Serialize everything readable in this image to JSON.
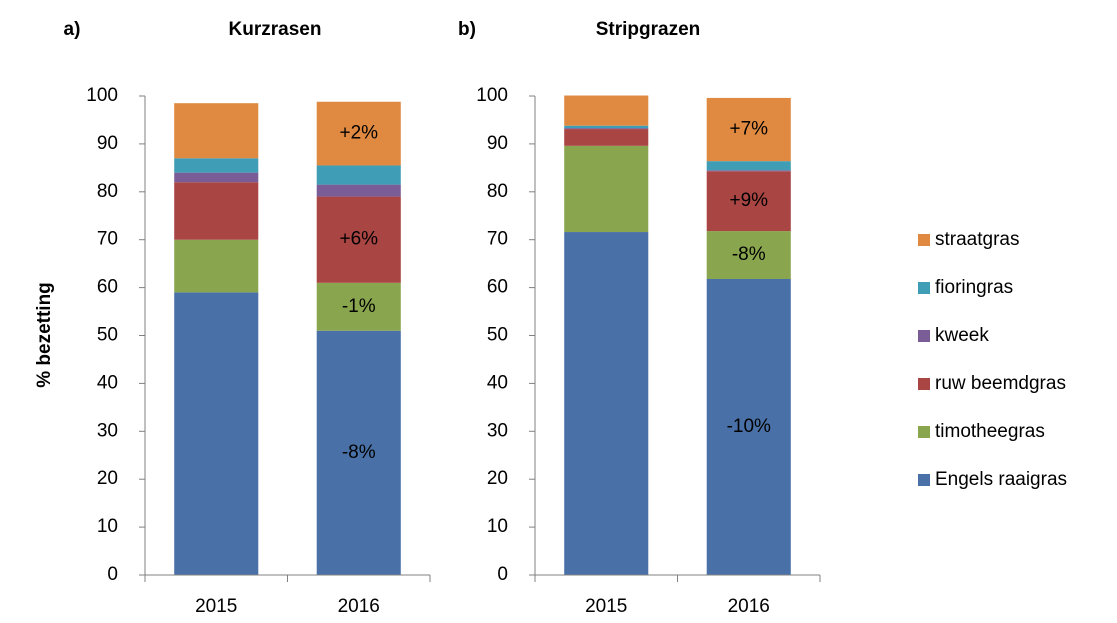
{
  "chart_data": [
    {
      "type": "stacked_bar",
      "panel_label": "a)",
      "title": "Kurzrasen",
      "ylabel": "% bezetting",
      "categories": [
        "2015",
        "2016"
      ],
      "ylim": [
        0,
        100
      ],
      "yticks": [
        0,
        10,
        20,
        30,
        40,
        50,
        60,
        70,
        80,
        90,
        100
      ],
      "series": [
        {
          "name": "Engels raaigras",
          "color": "#4a71a7",
          "values": [
            59,
            51
          ],
          "change_labels": [
            null,
            "-8%"
          ]
        },
        {
          "name": "timotheegras",
          "color": "#89a54e",
          "values": [
            11,
            10
          ],
          "change_labels": [
            null,
            "-1%"
          ]
        },
        {
          "name": "ruw beemdgras",
          "color": "#a94543",
          "values": [
            12,
            18
          ],
          "change_labels": [
            null,
            "+6%"
          ]
        },
        {
          "name": "kweek",
          "color": "#7a5c97",
          "values": [
            2,
            2.5
          ]
        },
        {
          "name": "fioringras",
          "color": "#3f9db5",
          "values": [
            3,
            4
          ]
        },
        {
          "name": "straatgras",
          "color": "#e08a41",
          "values": [
            11.5,
            13.3
          ],
          "change_labels": [
            null,
            "+2%"
          ]
        }
      ]
    },
    {
      "type": "stacked_bar",
      "panel_label": "b)",
      "title": "Stripgrazen",
      "categories": [
        "2015",
        "2016"
      ],
      "ylim": [
        0,
        100
      ],
      "yticks": [
        0,
        10,
        20,
        30,
        40,
        50,
        60,
        70,
        80,
        90,
        100
      ],
      "series": [
        {
          "color": "#4a71a7",
          "values": [
            71.6,
            61.8
          ],
          "change_labels": [
            null,
            "-10%"
          ]
        },
        {
          "color": "#89a54e",
          "values": [
            18,
            10
          ],
          "change_labels": [
            null,
            "-8%"
          ]
        },
        {
          "color": "#a94543",
          "values": [
            3.5,
            12.5
          ],
          "change_labels": [
            null,
            "+9%"
          ]
        },
        {
          "color": "#7a5c97",
          "values": [
            0.2,
            0.2
          ]
        },
        {
          "color": "#3f9db5",
          "values": [
            0.5,
            1.9
          ]
        },
        {
          "color": "#e08a41",
          "values": [
            6.3,
            13.2
          ],
          "change_labels": [
            null,
            "+7%"
          ]
        }
      ]
    }
  ]
}
